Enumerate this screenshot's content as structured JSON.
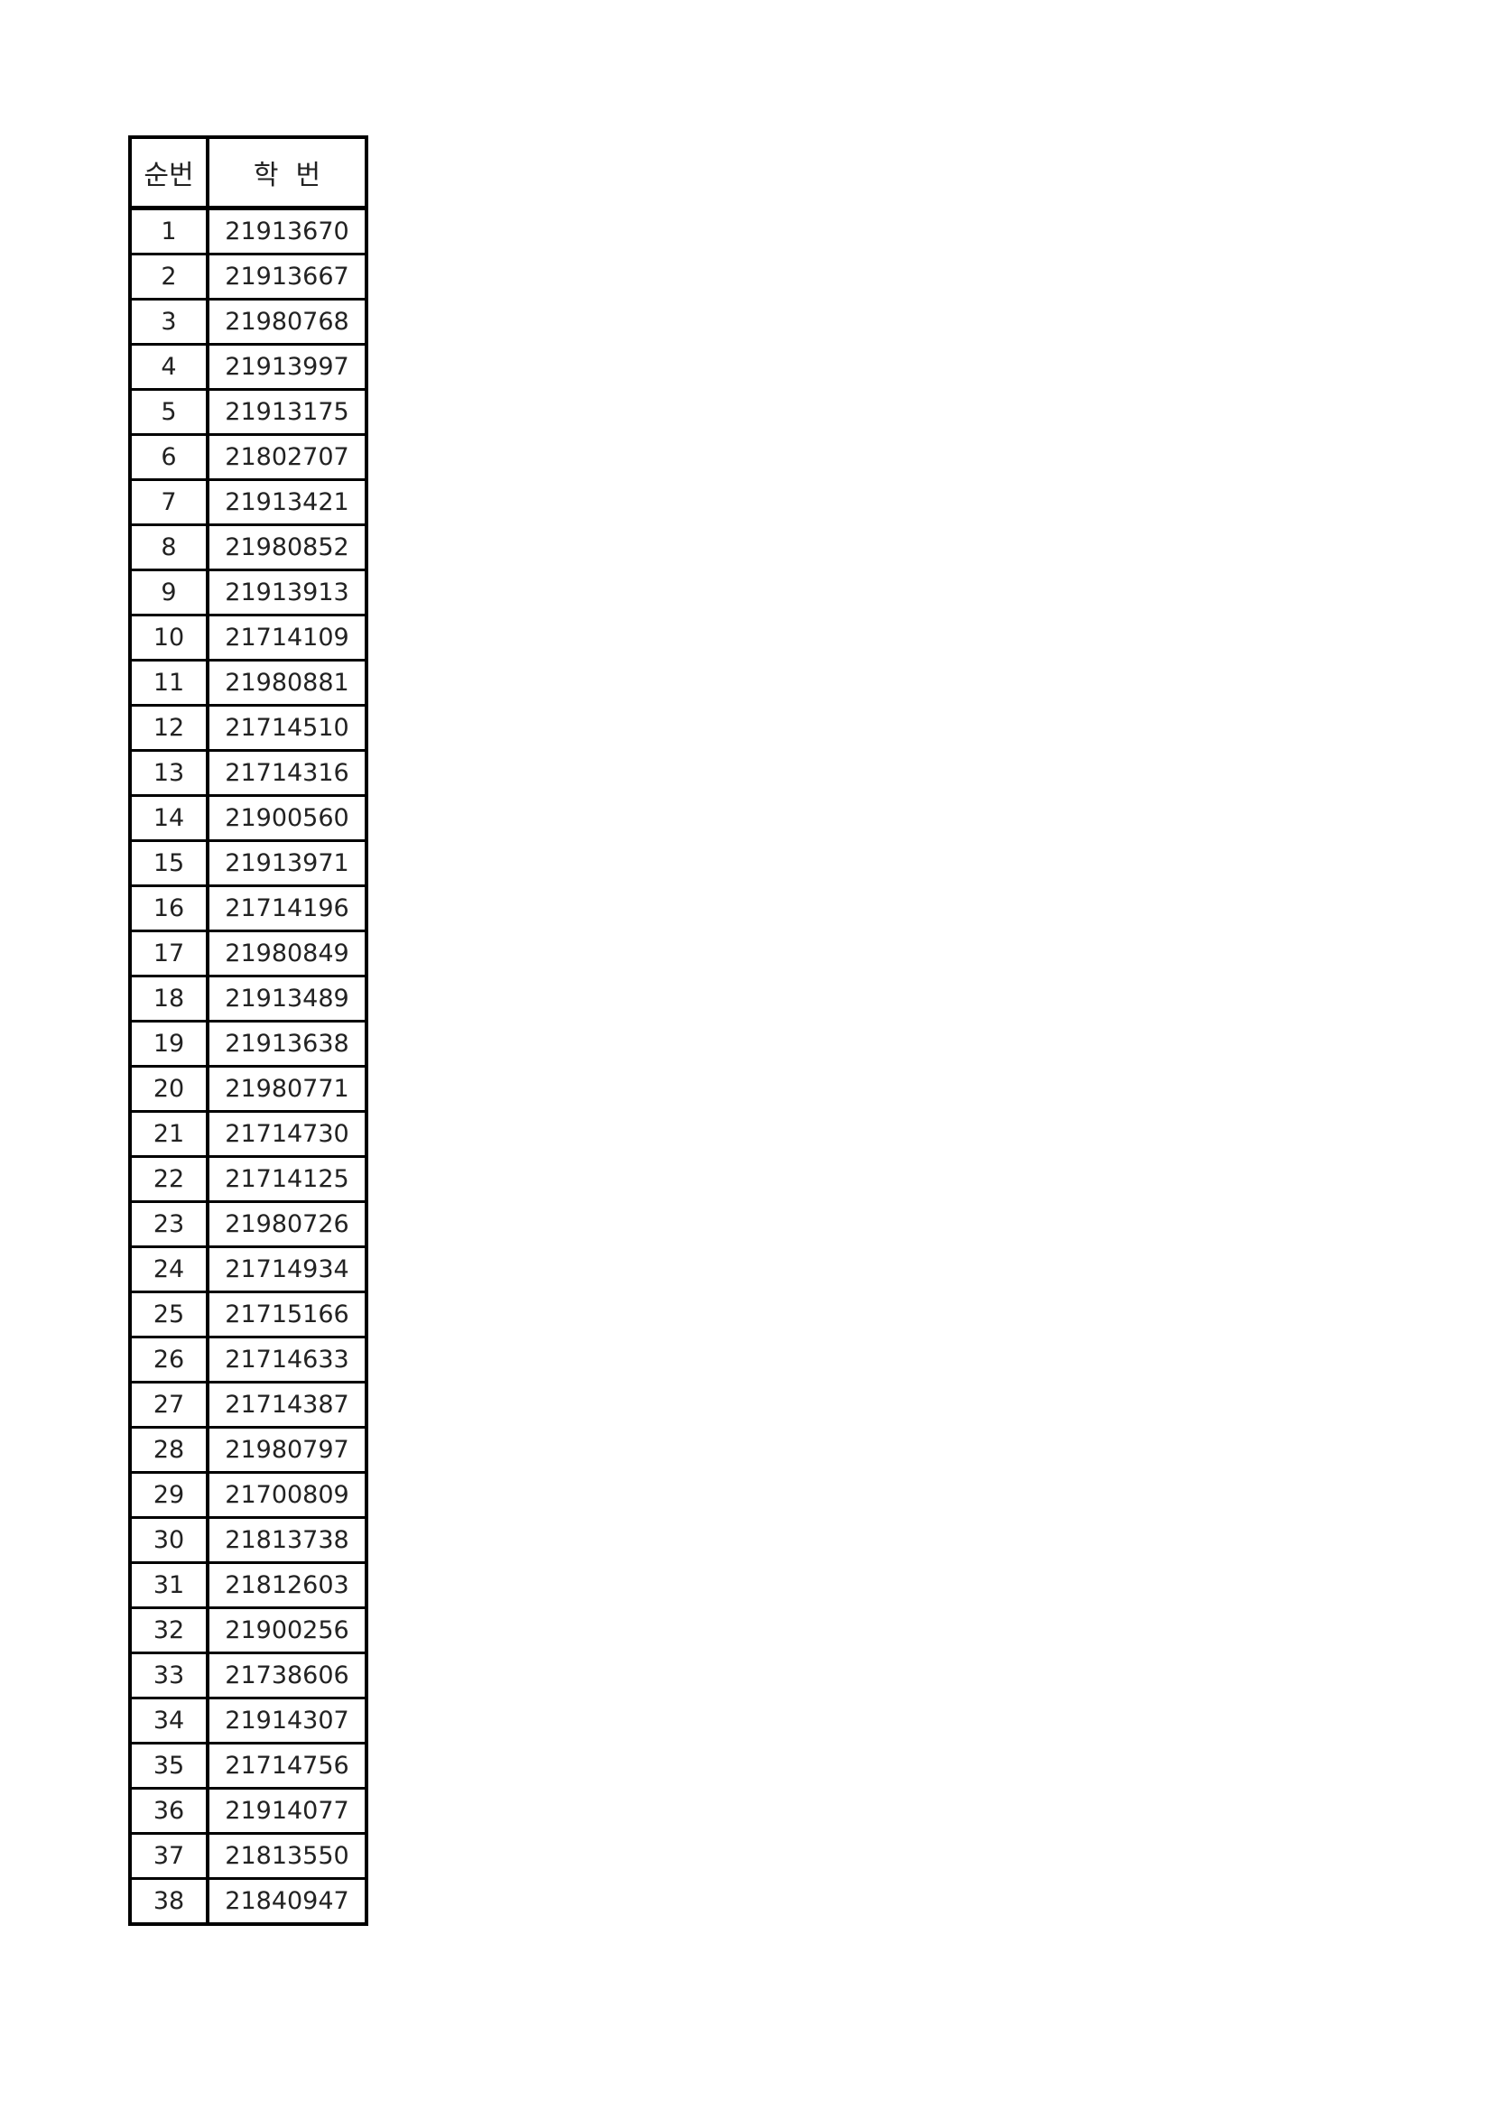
{
  "table": {
    "headers": [
      "순번",
      "학  번"
    ],
    "rows": [
      [
        "1",
        "21913670"
      ],
      [
        "2",
        "21913667"
      ],
      [
        "3",
        "21980768"
      ],
      [
        "4",
        "21913997"
      ],
      [
        "5",
        "21913175"
      ],
      [
        "6",
        "21802707"
      ],
      [
        "7",
        "21913421"
      ],
      [
        "8",
        "21980852"
      ],
      [
        "9",
        "21913913"
      ],
      [
        "10",
        "21714109"
      ],
      [
        "11",
        "21980881"
      ],
      [
        "12",
        "21714510"
      ],
      [
        "13",
        "21714316"
      ],
      [
        "14",
        "21900560"
      ],
      [
        "15",
        "21913971"
      ],
      [
        "16",
        "21714196"
      ],
      [
        "17",
        "21980849"
      ],
      [
        "18",
        "21913489"
      ],
      [
        "19",
        "21913638"
      ],
      [
        "20",
        "21980771"
      ],
      [
        "21",
        "21714730"
      ],
      [
        "22",
        "21714125"
      ],
      [
        "23",
        "21980726"
      ],
      [
        "24",
        "21714934"
      ],
      [
        "25",
        "21715166"
      ],
      [
        "26",
        "21714633"
      ],
      [
        "27",
        "21714387"
      ],
      [
        "28",
        "21980797"
      ],
      [
        "29",
        "21700809"
      ],
      [
        "30",
        "21813738"
      ],
      [
        "31",
        "21812603"
      ],
      [
        "32",
        "21900256"
      ],
      [
        "33",
        "21738606"
      ],
      [
        "34",
        "21914307"
      ],
      [
        "35",
        "21714756"
      ],
      [
        "36",
        "21914077"
      ],
      [
        "37",
        "21813550"
      ],
      [
        "38",
        "21840947"
      ]
    ]
  }
}
